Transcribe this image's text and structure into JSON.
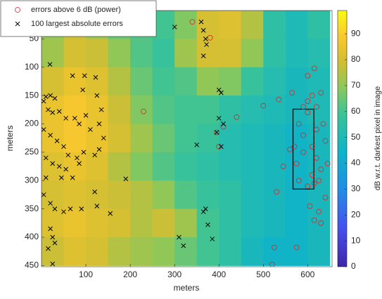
{
  "chart_data": {
    "type": "heatmap",
    "xlabel": "meters",
    "ylabel": "meters",
    "colorbar_label": "dB w.r.t. darkest pixel in image",
    "xlim": [
      0,
      655
    ],
    "ylim": [
      0,
      452
    ],
    "y_reversed": true,
    "xticks": [
      100,
      200,
      300,
      400,
      500,
      600
    ],
    "yticks": [
      50,
      100,
      150,
      200,
      250,
      300,
      350,
      400,
      450
    ],
    "clim": [
      0,
      99
    ],
    "cticks": [
      0,
      10,
      20,
      30,
      40,
      50,
      60,
      70,
      80,
      90
    ],
    "x_edges": [
      0,
      50,
      100,
      150,
      200,
      250,
      300,
      350,
      400,
      450,
      500,
      550,
      600,
      650
    ],
    "y_edges": [
      0,
      50,
      100,
      150,
      200,
      250,
      300,
      350,
      400,
      450
    ],
    "z": [
      [
        70,
        78,
        72,
        65,
        62,
        60,
        68,
        80,
        82,
        75,
        55,
        50,
        55
      ],
      [
        72,
        80,
        78,
        70,
        62,
        58,
        72,
        80,
        80,
        70,
        55,
        50,
        52
      ],
      [
        80,
        85,
        82,
        75,
        65,
        60,
        62,
        70,
        68,
        58,
        52,
        48,
        50
      ],
      [
        85,
        88,
        85,
        78,
        68,
        62,
        60,
        60,
        55,
        52,
        50,
        48,
        50
      ],
      [
        85,
        88,
        85,
        80,
        72,
        65,
        60,
        58,
        52,
        50,
        48,
        45,
        48
      ],
      [
        82,
        85,
        82,
        75,
        68,
        62,
        58,
        55,
        52,
        50,
        48,
        45,
        48
      ],
      [
        80,
        82,
        80,
        78,
        75,
        70,
        62,
        58,
        55,
        50,
        48,
        45,
        48
      ],
      [
        82,
        85,
        82,
        80,
        75,
        78,
        72,
        60,
        55,
        50,
        48,
        45,
        48
      ],
      [
        78,
        82,
        80,
        75,
        72,
        70,
        65,
        60,
        55,
        48,
        45,
        45,
        48
      ]
    ],
    "series": [
      {
        "name": "errors above 6 dB (power)",
        "marker": "circle",
        "color": "#d62728",
        "x": [
          230,
          340,
          380,
          500,
          535,
          565,
          580,
          590,
          600,
          610,
          620,
          630,
          615,
          600,
          610,
          620,
          630,
          640,
          645,
          570,
          575,
          560,
          530,
          600,
          615,
          625,
          640,
          605,
          625,
          630,
          615,
          575,
          525,
          520,
          400,
          395,
          410,
          440,
          545,
          600,
          590,
          620,
          635,
          610,
          580,
          590
        ],
        "y": [
          178,
          20,
          48,
          168,
          157,
          145,
          200,
          220,
          160,
          150,
          170,
          145,
          102,
          115,
          240,
          260,
          280,
          230,
          270,
          240,
          270,
          245,
          320,
          310,
          305,
          300,
          330,
          345,
          355,
          375,
          370,
          418,
          418,
          448,
          240,
          215,
          205,
          188,
          275,
          180,
          170,
          210,
          200,
          290,
          300,
          250
        ]
      },
      {
        "name": "100 largest absolute errors",
        "marker": "x",
        "color": "#000000",
        "x": [
          19,
          70,
          97,
          122,
          93,
          10,
          20,
          30,
          5,
          15,
          25,
          40,
          55,
          75,
          85,
          100,
          110,
          130,
          135,
          125,
          5,
          20,
          35,
          50,
          60,
          80,
          95,
          120,
          10,
          25,
          40,
          55,
          70,
          45,
          10,
          5,
          20,
          30,
          50,
          65,
          90,
          120,
          125,
          155,
          190,
          20,
          25,
          15,
          30,
          25,
          300,
          360,
          365,
          370,
          372,
          365,
          400,
          405,
          400,
          395,
          410,
          405,
          350,
          370,
          365,
          375,
          385,
          310,
          320,
          130,
          140,
          85
        ],
        "y": [
          95,
          115,
          115,
          118,
          140,
          152,
          150,
          155,
          160,
          175,
          180,
          178,
          190,
          190,
          200,
          185,
          210,
          200,
          175,
          150,
          210,
          220,
          230,
          240,
          255,
          260,
          250,
          255,
          260,
          270,
          275,
          280,
          295,
          295,
          295,
          325,
          340,
          350,
          355,
          350,
          350,
          320,
          345,
          358,
          297,
          385,
          400,
          420,
          410,
          447,
          29,
          20,
          35,
          50,
          60,
          80,
          140,
          145,
          190,
          215,
          200,
          240,
          237,
          350,
          355,
          378,
          403,
          400,
          415,
          245,
          225,
          270
        ]
      }
    ],
    "box": {
      "x": [
        567,
        614
      ],
      "y": [
        174,
        315
      ]
    },
    "legend": "upper left"
  }
}
